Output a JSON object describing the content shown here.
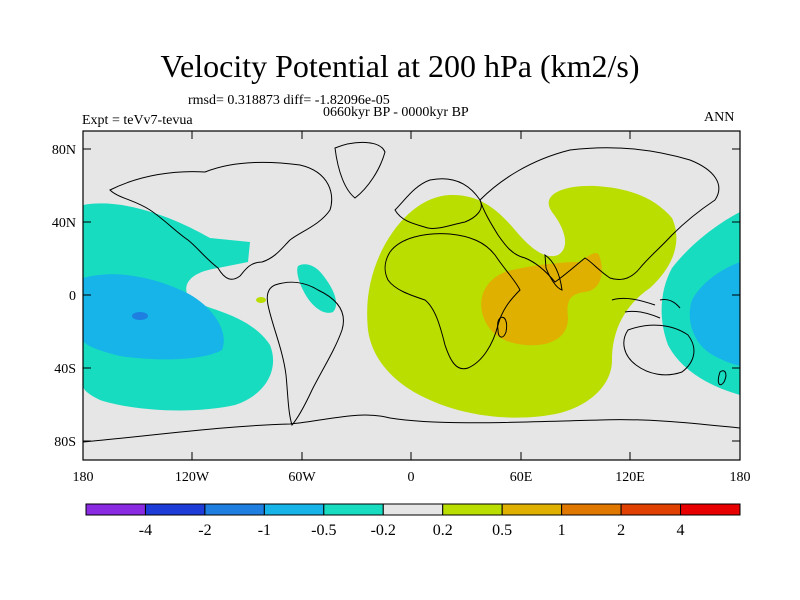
{
  "title": "Velocity Potential at 200 hPa (km2/s)",
  "stats": "rmsd= 0.318873 diff= -1.82096e-05",
  "experiment": "Expt = teVv7-tevua",
  "period": "0660kyr BP - 0000kyr BP",
  "season": "ANN",
  "map": {
    "lon_range": [
      -180,
      180
    ],
    "lat_range": [
      -90,
      90
    ],
    "land_outline": "coastline",
    "background_color": "#e6e6e6",
    "lat_labels": [
      "80N",
      "40N",
      "0",
      "40S",
      "80S"
    ],
    "lon_labels": [
      "180",
      "120W",
      "60W",
      "0",
      "60E",
      "120E",
      "180"
    ]
  },
  "colorbar": {
    "colors": [
      "#8a2be2",
      "#1e3cd8",
      "#1e7fe0",
      "#16b4e8",
      "#18dcc0",
      "#e6e6e6",
      "#b9de00",
      "#e0b000",
      "#e07800",
      "#e04000",
      "#e80000"
    ],
    "labels": [
      "-4",
      "-2",
      "-1",
      "-0.5",
      "-0.2",
      "0.2",
      "0.5",
      "1",
      "2",
      "4"
    ]
  }
}
